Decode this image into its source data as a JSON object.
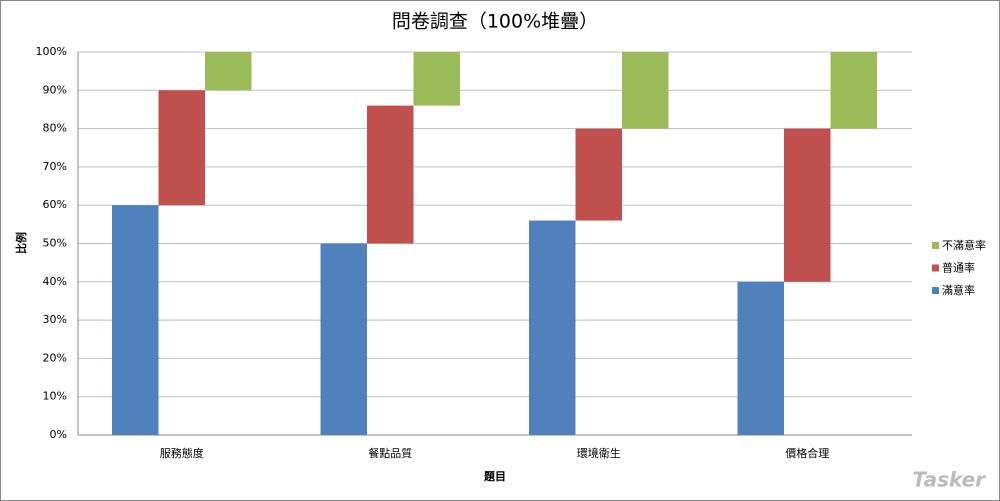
{
  "chart_data": {
    "type": "offset-stacked-bar",
    "title": "問卷調查（100%堆疊）",
    "x_label": "題目",
    "y_label": "比例",
    "categories": [
      "服務態度",
      "餐點品質",
      "環境衛生",
      "價格合理"
    ],
    "series": [
      {
        "name": "滿意率",
        "color": "#4f81bd",
        "values": [
          60,
          50,
          56,
          40
        ]
      },
      {
        "name": "普通率",
        "color": "#c0504d",
        "values": [
          30,
          36,
          24,
          40
        ]
      },
      {
        "name": "不滿意率",
        "color": "#9bbb59",
        "values": [
          10,
          14,
          20,
          20
        ]
      }
    ],
    "ylim": [
      0,
      100
    ],
    "yticks": [
      {
        "value": 0,
        "label": "0%"
      },
      {
        "value": 10,
        "label": "10%"
      },
      {
        "value": 20,
        "label": "20%"
      },
      {
        "value": 30,
        "label": "30%"
      },
      {
        "value": 40,
        "label": "40%"
      },
      {
        "value": 50,
        "label": "50%"
      },
      {
        "value": 60,
        "label": "60%"
      },
      {
        "value": 70,
        "label": "70%"
      },
      {
        "value": 80,
        "label": "80%"
      },
      {
        "value": 90,
        "label": "90%"
      },
      {
        "value": 100,
        "label": "100%"
      }
    ],
    "grid": true,
    "legend": "right",
    "watermark": "Tasker"
  }
}
